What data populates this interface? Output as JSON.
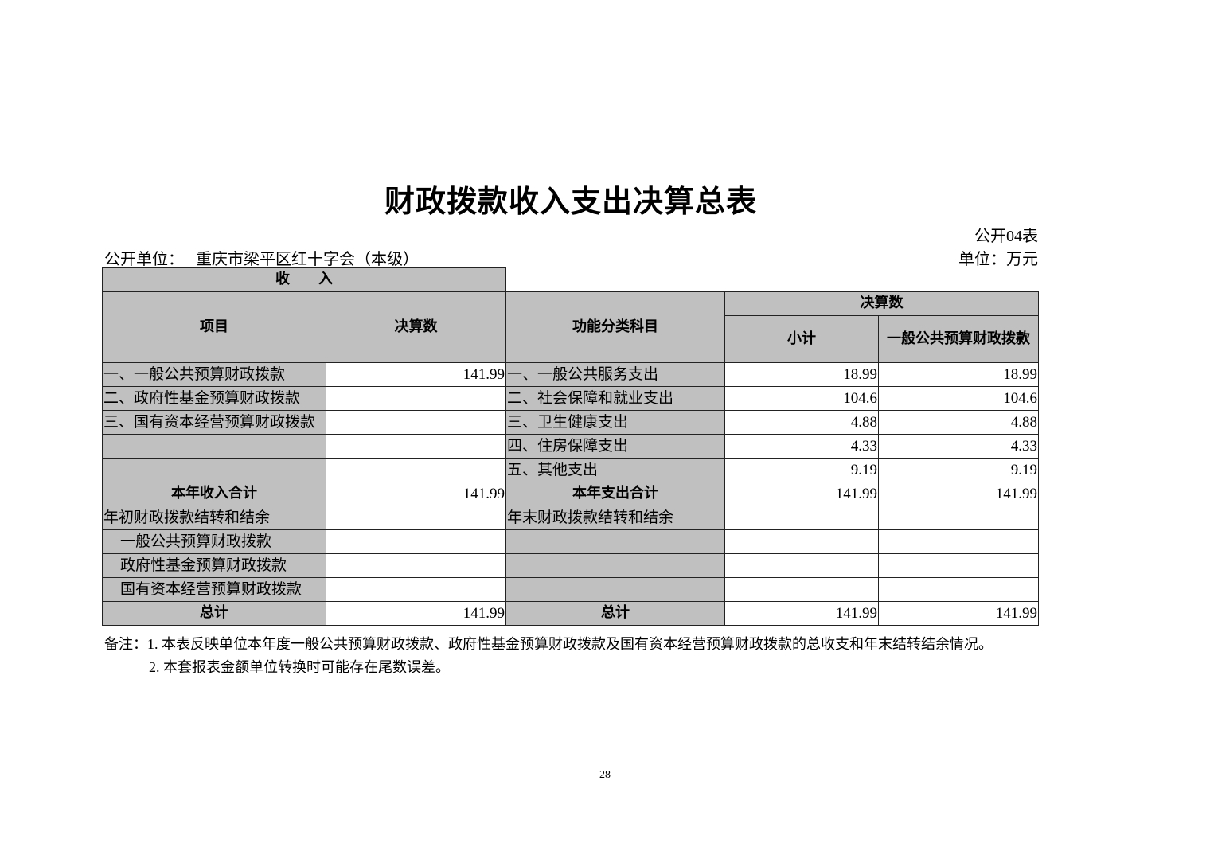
{
  "title": "财政拨款收入支出决算总表",
  "table_no": "公开04表",
  "unit_label": "公开单位：",
  "unit_name": "重庆市梁平区红十字会（本级）",
  "currency": "单位：万元",
  "header": {
    "income": "收　　入",
    "item": "项目",
    "amount": "决算数",
    "func": "功能分类科目",
    "final": "决算数",
    "subtotal": "小计",
    "general": "一般公共预算财政拨款"
  },
  "rows": [
    {
      "in_label": "一、一般公共预算财政拨款",
      "in_val": "141.99",
      "out_label": "一、一般公共服务支出",
      "sub": "18.99",
      "gen": "18.99"
    },
    {
      "in_label": "二、政府性基金预算财政拨款",
      "in_val": "",
      "out_label": "二、社会保障和就业支出",
      "sub": "104.6",
      "gen": "104.6"
    },
    {
      "in_label": "三、国有资本经营预算财政拨款",
      "in_val": "",
      "out_label": "三、卫生健康支出",
      "sub": "4.88",
      "gen": "4.88"
    },
    {
      "in_label": "",
      "in_val": "",
      "out_label": "四、住房保障支出",
      "sub": "4.33",
      "gen": "4.33"
    },
    {
      "in_label": "",
      "in_val": "",
      "out_label": "五、其他支出",
      "sub": "9.19",
      "gen": "9.19"
    },
    {
      "in_label": "本年收入合计",
      "in_val": "141.99",
      "out_label": "本年支出合计",
      "sub": "141.99",
      "gen": "141.99",
      "bold": true
    },
    {
      "in_label": "年初财政拨款结转和结余",
      "in_val": "",
      "out_label": "年末财政拨款结转和结余",
      "sub": "",
      "gen": ""
    },
    {
      "in_label": "一般公共预算财政拨款",
      "in_val": "",
      "out_label": "",
      "sub": "",
      "gen": "",
      "indent": true
    },
    {
      "in_label": "政府性基金预算财政拨款",
      "in_val": "",
      "out_label": "",
      "sub": "",
      "gen": "",
      "indent": true
    },
    {
      "in_label": "国有资本经营预算财政拨款",
      "in_val": "",
      "out_label": "",
      "sub": "",
      "gen": "",
      "indent": true
    },
    {
      "in_label": "总计",
      "in_val": "141.99",
      "out_label": "总计",
      "sub": "141.99",
      "gen": "141.99",
      "bold": true
    }
  ],
  "notes": [
    "备注：1. 本表反映单位本年度一般公共预算财政拨款、政府性基金预算财政拨款及国有资本经营预算财政拨款的总收支和年末结转结余情况。",
    "2. 本套报表金额单位转换时可能存在尾数误差。"
  ],
  "page_number": "28"
}
